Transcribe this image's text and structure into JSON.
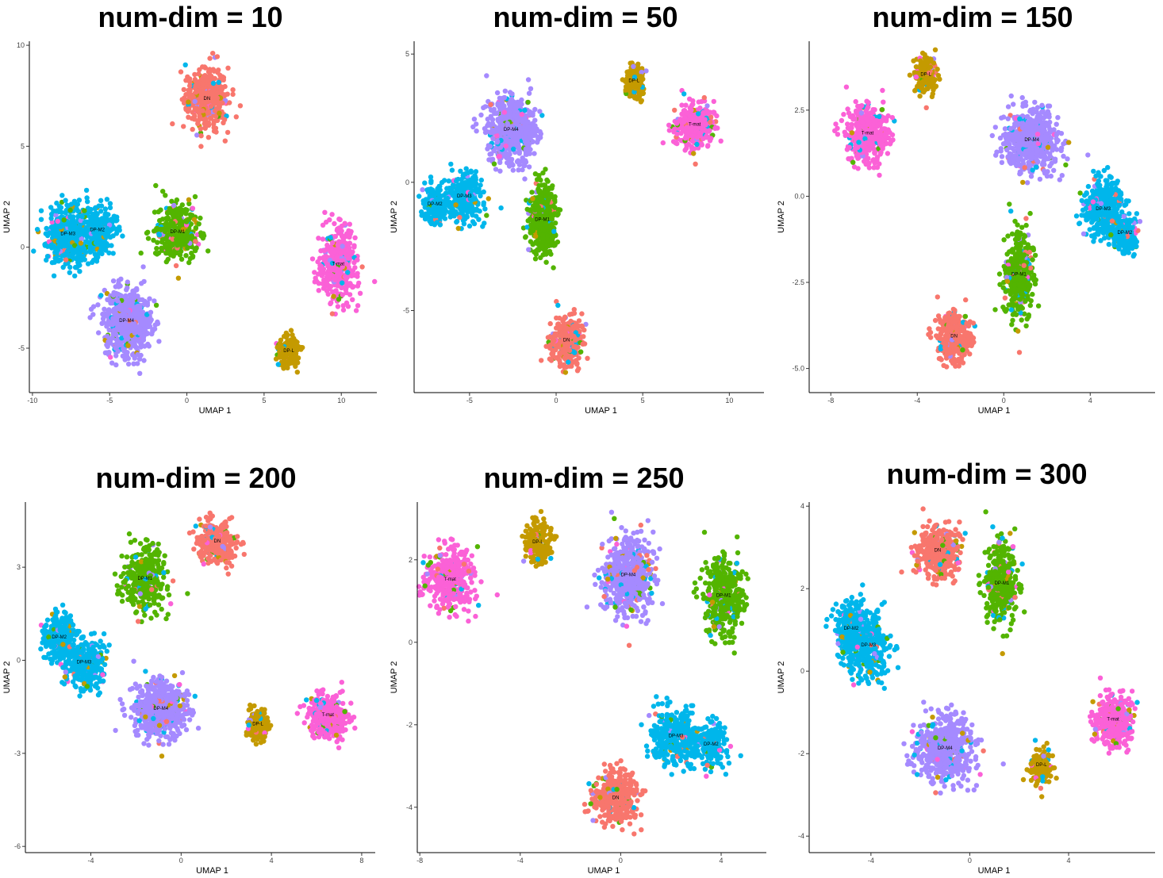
{
  "colors": {
    "DN": "#F8766D",
    "DP-L": "#C49A00",
    "DP-M1": "#53B400",
    "DP-M2": "#00B6EB",
    "DP-M3": "#00B6EB",
    "DP-M4": "#A58AFF",
    "T-mat": "#FB61D7"
  },
  "chart_data": [
    {
      "type": "scatter",
      "title": "num-dim = 10",
      "xlabel": "UMAP 1",
      "ylabel": "UMAP 2",
      "xlim": [
        -10.2,
        12.3
      ],
      "ylim": [
        -7.2,
        10.2
      ],
      "xticks": [
        -10,
        -5,
        0,
        5,
        10
      ],
      "yticks": [
        -5,
        0,
        5,
        10
      ],
      "xtick_labels": [
        "-10",
        "-5",
        "0",
        "5",
        "10"
      ],
      "ytick_labels": [
        "-5",
        "0",
        "5",
        "10"
      ],
      "clusters": [
        {
          "label": "DN",
          "x": 1.3,
          "y": 7.3,
          "sx": 1.2,
          "sy": 1.4,
          "n": 420
        },
        {
          "label": "DP-M3",
          "x": -7.7,
          "y": 0.6,
          "sx": 1.2,
          "sy": 1.3,
          "n": 500
        },
        {
          "label": "DP-M2",
          "x": -5.8,
          "y": 0.8,
          "sx": 1.0,
          "sy": 1.1,
          "n": 300
        },
        {
          "label": "DP-M1",
          "x": -0.6,
          "y": 0.7,
          "sx": 1.3,
          "sy": 1.2,
          "n": 430
        },
        {
          "label": "DP-M4",
          "x": -3.9,
          "y": -3.7,
          "sx": 1.4,
          "sy": 1.5,
          "n": 620
        },
        {
          "label": "T-mat",
          "x": 9.8,
          "y": -0.9,
          "sx": 1.0,
          "sy": 1.6,
          "n": 460
        },
        {
          "label": "DP-L",
          "x": 6.6,
          "y": -5.2,
          "sx": 0.6,
          "sy": 0.7,
          "n": 200
        }
      ]
    },
    {
      "type": "scatter",
      "title": "num-dim = 50",
      "xlabel": "UMAP 1",
      "ylabel": "UMAP 2",
      "xlim": [
        -8.2,
        12.0
      ],
      "ylim": [
        -8.2,
        5.5
      ],
      "xticks": [
        -5,
        0,
        5,
        10
      ],
      "yticks": [
        -5,
        0,
        5
      ],
      "xtick_labels": [
        "-5",
        "0",
        "5",
        "10"
      ],
      "ytick_labels": [
        "-5",
        "0",
        "5"
      ],
      "clusters": [
        {
          "label": "DP-L",
          "x": 4.5,
          "y": 3.9,
          "sx": 0.5,
          "sy": 0.6,
          "n": 180
        },
        {
          "label": "T-mat",
          "x": 8.0,
          "y": 2.2,
          "sx": 1.0,
          "sy": 0.8,
          "n": 400
        },
        {
          "label": "DP-M4",
          "x": -2.6,
          "y": 2.0,
          "sx": 1.3,
          "sy": 1.1,
          "n": 620
        },
        {
          "label": "DP-M2",
          "x": -7.0,
          "y": -0.9,
          "sx": 0.6,
          "sy": 0.7,
          "n": 220
        },
        {
          "label": "DP-M3",
          "x": -5.3,
          "y": -0.6,
          "sx": 0.9,
          "sy": 0.8,
          "n": 320
        },
        {
          "label": "DP-M1",
          "x": -0.8,
          "y": -1.5,
          "sx": 0.7,
          "sy": 1.3,
          "n": 430
        },
        {
          "label": "DN",
          "x": 0.6,
          "y": -6.2,
          "sx": 0.8,
          "sy": 0.9,
          "n": 380
        }
      ]
    },
    {
      "type": "scatter",
      "title": "num-dim = 150",
      "xlabel": "UMAP 1",
      "ylabel": "UMAP 2",
      "xlim": [
        -9.0,
        7.0
      ],
      "ylim": [
        -5.7,
        4.5
      ],
      "xticks": [
        -8,
        -4,
        0,
        4
      ],
      "yticks": [
        -5.0,
        -2.5,
        0.0,
        2.5
      ],
      "xtick_labels": [
        "-8",
        "-4",
        "0",
        "4"
      ],
      "ytick_labels": [
        "-5.0",
        "-2.5",
        "0.0",
        "2.5"
      ],
      "clusters": [
        {
          "label": "DP-L",
          "x": -3.6,
          "y": 3.5,
          "sx": 0.5,
          "sy": 0.5,
          "n": 200
        },
        {
          "label": "T-mat",
          "x": -6.3,
          "y": 1.8,
          "sx": 0.9,
          "sy": 0.7,
          "n": 420
        },
        {
          "label": "DP-M4",
          "x": 1.3,
          "y": 1.6,
          "sx": 1.1,
          "sy": 0.8,
          "n": 600
        },
        {
          "label": "DP-M3",
          "x": 4.6,
          "y": -0.4,
          "sx": 0.8,
          "sy": 0.8,
          "n": 380
        },
        {
          "label": "DP-M2",
          "x": 5.6,
          "y": -1.1,
          "sx": 0.5,
          "sy": 0.5,
          "n": 200
        },
        {
          "label": "DP-M1",
          "x": 0.7,
          "y": -2.3,
          "sx": 0.6,
          "sy": 1.2,
          "n": 420
        },
        {
          "label": "DN",
          "x": -2.3,
          "y": -4.1,
          "sx": 0.7,
          "sy": 0.6,
          "n": 360
        }
      ]
    },
    {
      "type": "scatter",
      "title": "num-dim = 200",
      "xlabel": "UMAP 1",
      "ylabel": "UMAP 2",
      "xlim": [
        -6.9,
        8.6
      ],
      "ylim": [
        -6.2,
        5.1
      ],
      "xticks": [
        -4,
        0,
        4,
        8
      ],
      "yticks": [
        -6,
        -3,
        0,
        3
      ],
      "xtick_labels": [
        "-4",
        "0",
        "4",
        "8"
      ],
      "ytick_labels": [
        "-6",
        "-3",
        "0",
        "3"
      ],
      "clusters": [
        {
          "label": "DN",
          "x": 1.6,
          "y": 3.8,
          "sx": 0.8,
          "sy": 0.6,
          "n": 360
        },
        {
          "label": "DP-M1",
          "x": -1.6,
          "y": 2.6,
          "sx": 0.8,
          "sy": 0.9,
          "n": 380
        },
        {
          "label": "DP-M2",
          "x": -5.4,
          "y": 0.7,
          "sx": 0.6,
          "sy": 0.7,
          "n": 280
        },
        {
          "label": "DP-M3",
          "x": -4.3,
          "y": -0.1,
          "sx": 0.8,
          "sy": 0.8,
          "n": 320
        },
        {
          "label": "DP-M4",
          "x": -0.9,
          "y": -1.6,
          "sx": 1.1,
          "sy": 0.8,
          "n": 600
        },
        {
          "label": "T-mat",
          "x": 6.5,
          "y": -1.8,
          "sx": 0.8,
          "sy": 0.6,
          "n": 400
        },
        {
          "label": "DP-L",
          "x": 3.4,
          "y": -2.1,
          "sx": 0.4,
          "sy": 0.4,
          "n": 180
        }
      ]
    },
    {
      "type": "scatter",
      "title": "num-dim = 250",
      "xlabel": "UMAP 1",
      "ylabel": "UMAP 2",
      "xlim": [
        -8.1,
        5.8
      ],
      "ylim": [
        -5.1,
        3.4
      ],
      "xticks": [
        -8,
        -4,
        0,
        4
      ],
      "yticks": [
        -4,
        -2,
        0,
        2
      ],
      "xtick_labels": [
        "-8",
        "-4",
        "0",
        "4"
      ],
      "ytick_labels": [
        "-4",
        "-2",
        "0",
        "2"
      ],
      "clusters": [
        {
          "label": "T-mat",
          "x": -6.8,
          "y": 1.5,
          "sx": 0.8,
          "sy": 0.7,
          "n": 420
        },
        {
          "label": "DP-L",
          "x": -3.3,
          "y": 2.4,
          "sx": 0.5,
          "sy": 0.5,
          "n": 200
        },
        {
          "label": "DP-M4",
          "x": 0.3,
          "y": 1.6,
          "sx": 0.9,
          "sy": 0.9,
          "n": 600
        },
        {
          "label": "DP-M1",
          "x": 4.1,
          "y": 1.1,
          "sx": 0.7,
          "sy": 0.8,
          "n": 400
        },
        {
          "label": "DP-M3",
          "x": 2.2,
          "y": -2.3,
          "sx": 0.9,
          "sy": 0.6,
          "n": 380
        },
        {
          "label": "DP-M2",
          "x": 3.6,
          "y": -2.5,
          "sx": 0.5,
          "sy": 0.5,
          "n": 200
        },
        {
          "label": "DN",
          "x": -0.2,
          "y": -3.8,
          "sx": 0.8,
          "sy": 0.6,
          "n": 380
        }
      ]
    },
    {
      "type": "scatter",
      "title": "num-dim = 300",
      "xlabel": "UMAP 1",
      "ylabel": "UMAP 2",
      "xlim": [
        -6.5,
        7.5
      ],
      "ylim": [
        -4.4,
        4.1
      ],
      "xticks": [
        -4,
        0,
        4
      ],
      "yticks": [
        -4,
        -2,
        0,
        2,
        4
      ],
      "xtick_labels": [
        "-4",
        "0",
        "4"
      ],
      "ytick_labels": [
        "-4",
        "-2",
        "0",
        "2",
        "4"
      ],
      "clusters": [
        {
          "label": "DN",
          "x": -1.3,
          "y": 2.9,
          "sx": 0.8,
          "sy": 0.6,
          "n": 380
        },
        {
          "label": "DP-M1",
          "x": 1.3,
          "y": 2.1,
          "sx": 0.6,
          "sy": 0.9,
          "n": 400
        },
        {
          "label": "DP-M2",
          "x": -4.8,
          "y": 1.0,
          "sx": 0.6,
          "sy": 0.6,
          "n": 260
        },
        {
          "label": "DP-M3",
          "x": -4.1,
          "y": 0.6,
          "sx": 0.8,
          "sy": 0.8,
          "n": 340
        },
        {
          "label": "DP-M4",
          "x": -1.0,
          "y": -1.9,
          "sx": 1.0,
          "sy": 0.7,
          "n": 600
        },
        {
          "label": "T-mat",
          "x": 5.8,
          "y": -1.2,
          "sx": 0.7,
          "sy": 0.6,
          "n": 400
        },
        {
          "label": "DP-L",
          "x": 2.9,
          "y": -2.3,
          "sx": 0.4,
          "sy": 0.4,
          "n": 180
        }
      ]
    }
  ]
}
